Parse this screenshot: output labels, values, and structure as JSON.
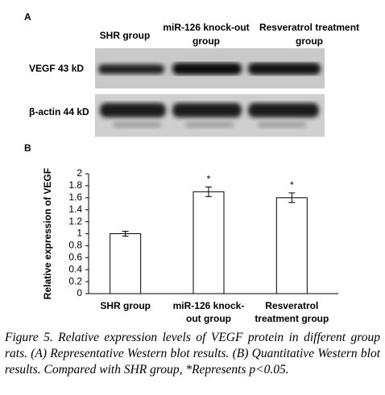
{
  "blot": {
    "label": "A",
    "columns": [
      [
        "SHR group"
      ],
      [
        "miR-126 knock-out",
        "group"
      ],
      [
        "Resveratrol treatment",
        "group"
      ]
    ],
    "rows": [
      "VEGF  43 kD",
      "β-actin  44 kD"
    ]
  },
  "chart_data": {
    "type": "bar",
    "label": "B",
    "ylabel": "Relative expression of VEGF",
    "categories": [
      [
        "SHR group"
      ],
      [
        "miR-126 knock-",
        "out group"
      ],
      [
        "Resveratrol",
        "treatment group"
      ]
    ],
    "values": [
      1.0,
      1.7,
      1.6
    ],
    "errors": [
      0.04,
      0.08,
      0.08
    ],
    "significance": [
      null,
      "*",
      "*"
    ],
    "color": "#ffffff",
    "ylim": [
      0,
      2
    ],
    "yticks": [
      0,
      0.2,
      0.4,
      0.6,
      0.8,
      1,
      1.2,
      1.4,
      1.6,
      1.8,
      2
    ],
    "grid": false
  },
  "caption": "Figure 5. Relative expression levels of VEGF protein in different group rats. (A) Representative Western blot results. (B) Quantitative Western blot results. Compared with SHR group, *Represents p<0.05."
}
